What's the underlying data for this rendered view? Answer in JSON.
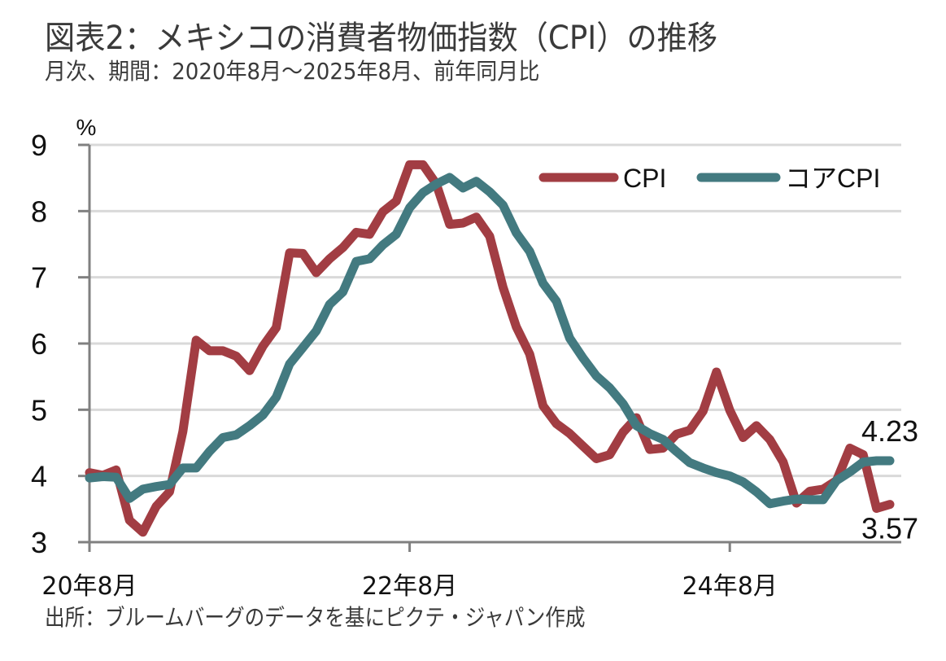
{
  "header": {
    "title": "図表2：メキシコの消費者物価指数（CPI）の推移",
    "subtitle": "月次、期間：2020年8月～2025年8月、前年同月比"
  },
  "footer": {
    "source": "出所：ブルームバーグのデータを基にピクテ・ジャパン作成"
  },
  "chart_data": {
    "type": "line",
    "title": "図表2：メキシコの消費者物価指数（CPI）の推移",
    "subtitle": "月次、期間：2020年8月～2025年8月、前年同月比",
    "xlabel": "",
    "ylabel": "%",
    "ylim": [
      3,
      9
    ],
    "yticks": [
      3,
      4,
      5,
      6,
      7,
      8,
      9
    ],
    "ytick_labels": [
      "3",
      "4",
      "5",
      "6",
      "7",
      "8",
      "9"
    ],
    "x_start": "2020-08",
    "x_end": "2025-08",
    "x_frequency": "monthly",
    "xtick_labels": [
      {
        "label": "20年8月",
        "index": 0
      },
      {
        "label": "22年8月",
        "index": 24
      },
      {
        "label": "24年8月",
        "index": 48
      }
    ],
    "grid": "horizontal",
    "legend_position": "top-right",
    "series": [
      {
        "name": "CPI",
        "color": "#a23d43",
        "values": [
          4.05,
          4.01,
          4.09,
          3.33,
          3.15,
          3.54,
          3.76,
          4.67,
          6.05,
          5.89,
          5.89,
          5.81,
          5.59,
          5.96,
          6.24,
          7.37,
          7.36,
          7.07,
          7.28,
          7.45,
          7.68,
          7.65,
          7.99,
          8.15,
          8.7,
          8.7,
          8.41,
          7.8,
          7.82,
          7.91,
          7.62,
          6.85,
          6.25,
          5.84,
          5.06,
          4.79,
          4.64,
          4.45,
          4.26,
          4.32,
          4.66,
          4.88,
          4.4,
          4.42,
          4.63,
          4.69,
          4.98,
          5.57,
          4.99,
          4.58,
          4.76,
          4.55,
          4.21,
          3.59,
          3.77,
          3.8,
          3.93,
          4.42,
          4.32,
          3.51,
          3.57
        ]
      },
      {
        "name": "コアCPI",
        "color": "#437a80",
        "values": [
          3.97,
          3.99,
          3.98,
          3.66,
          3.8,
          3.84,
          3.87,
          4.12,
          4.12,
          4.37,
          4.58,
          4.62,
          4.76,
          4.92,
          5.19,
          5.69,
          5.94,
          6.19,
          6.59,
          6.78,
          7.24,
          7.28,
          7.49,
          7.65,
          8.05,
          8.28,
          8.41,
          8.51,
          8.35,
          8.45,
          8.29,
          8.09,
          7.67,
          7.39,
          6.91,
          6.64,
          6.08,
          5.78,
          5.51,
          5.33,
          5.09,
          4.76,
          4.64,
          4.55,
          4.37,
          4.2,
          4.12,
          4.05,
          4.0,
          3.91,
          3.76,
          3.58,
          3.62,
          3.65,
          3.64,
          3.64,
          3.93,
          4.06,
          4.21,
          4.23,
          4.23
        ]
      }
    ],
    "annotations": [
      {
        "text": "4.23",
        "series": "コアCPI",
        "position": "last-point-above"
      },
      {
        "text": "3.57",
        "series": "CPI",
        "position": "last-point-below"
      }
    ]
  }
}
